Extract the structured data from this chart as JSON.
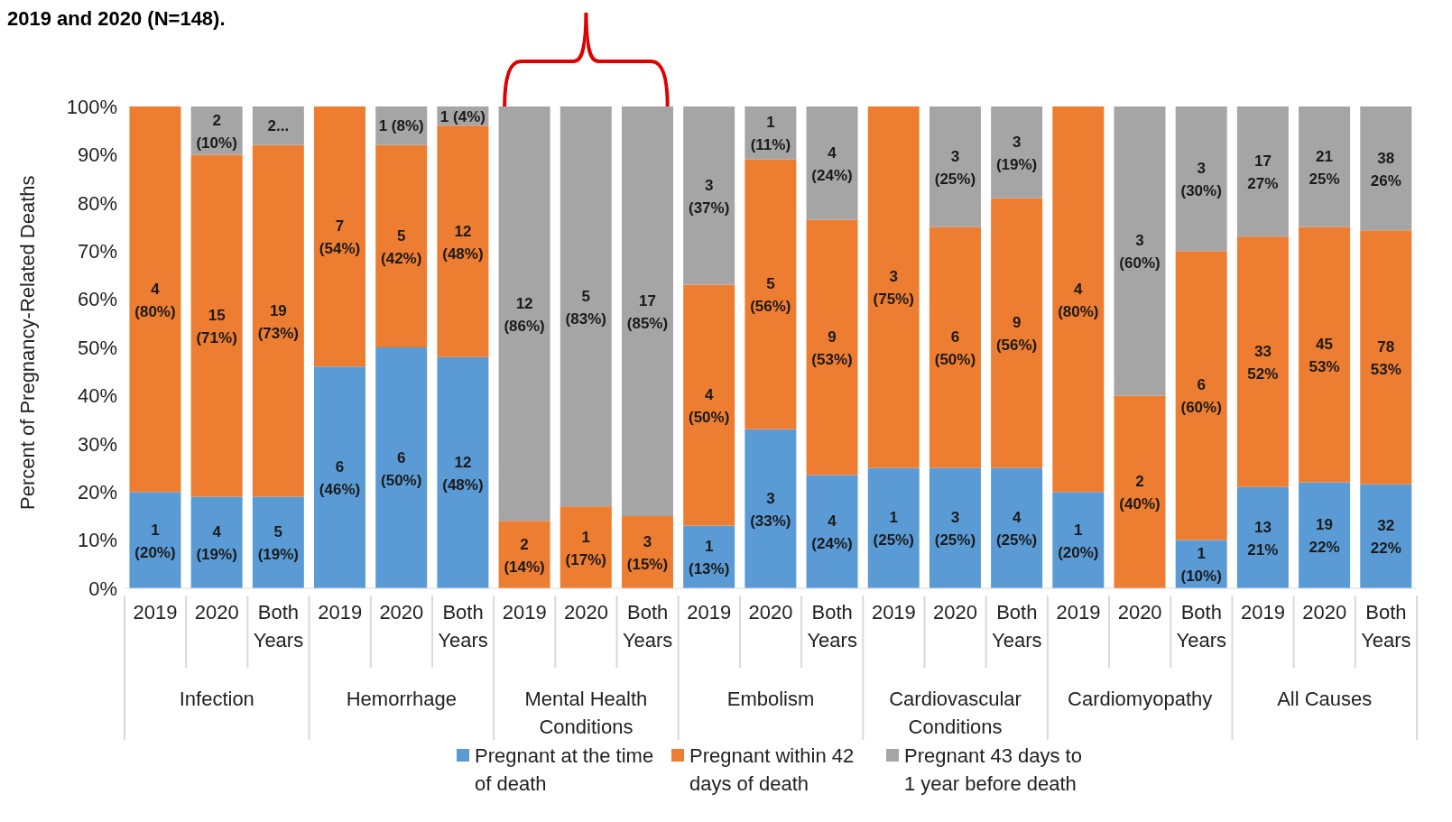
{
  "chart_data": {
    "type": "bar",
    "stacked": true,
    "title": "2019 and 2020 (N=148).",
    "ylabel": "Percent of Pregnancy-Related Deaths",
    "categories": [
      "2019",
      "2020",
      "Both Years",
      "2019",
      "2020",
      "Both Years",
      "2019",
      "2020",
      "Both Years",
      "2019",
      "2020",
      "Both Years",
      "2019",
      "2020",
      "Both Years",
      "2019",
      "2020",
      "Both Years",
      "2019",
      "2020",
      "Both Years"
    ],
    "annotations": [
      "Infection",
      "Hemorrhage",
      "Mental Health Conditions",
      "Embolism",
      "Cardiovascular Conditions",
      "Cardiomyopathy",
      "All Causes"
    ],
    "ylim": [
      0,
      100
    ],
    "yticks": [
      {
        "value": 0,
        "label": "0%"
      },
      {
        "value": 10,
        "label": "10%"
      },
      {
        "value": 20,
        "label": "20%"
      },
      {
        "value": 30,
        "label": "30%"
      },
      {
        "value": 40,
        "label": "40%"
      },
      {
        "value": 50,
        "label": "50%"
      },
      {
        "value": 60,
        "label": "60%"
      },
      {
        "value": 70,
        "label": "70%"
      },
      {
        "value": 80,
        "label": "80%"
      },
      {
        "value": 90,
        "label": "90%"
      },
      {
        "value": 100,
        "label": "100%"
      }
    ],
    "legend": "bottom",
    "series": [
      {
        "name": "Pregnant at the time of death",
        "color": "#5b9bd5",
        "values": [
          20,
          19,
          19,
          46,
          50,
          48,
          0,
          0,
          0,
          13,
          33,
          23.5,
          25,
          25,
          25,
          20,
          0,
          10,
          21,
          22,
          21.6
        ],
        "value_labels": [
          "1 (20%)",
          "4 (19%)",
          "5 (19%)",
          "6 (46%)",
          "6 (50%)",
          "12 (48%)",
          null,
          null,
          null,
          "1 (13%)",
          "3 (33%)",
          "4 (24%)",
          "1 (25%)",
          "3 (25%)",
          "4 (25%)",
          "1 (20%)",
          null,
          "1 (10%)",
          "13 21%",
          "19 22%",
          "32 22%"
        ]
      },
      {
        "name": "Pregnant within 42 days of death",
        "color": "#ed7d31",
        "values": [
          80,
          71,
          73,
          54,
          42,
          48,
          14,
          17,
          15,
          50,
          56,
          53,
          75,
          50,
          56,
          80,
          40,
          60,
          52,
          53,
          52.7
        ],
        "value_labels": [
          "4 (80%)",
          "15 (71%)",
          "19 (73%)",
          "7 (54%)",
          "5 (42%)",
          "12 (48%)",
          "2 (14%)",
          "1 (17%)",
          "3 (15%)",
          "4 (50%)",
          "5 (56%)",
          "9 (53%)",
          "3 (75%)",
          "6 (50%)",
          "9 (56%)",
          "4 (80%)",
          "2 (40%)",
          "6 (60%)",
          "33 52%",
          "45 53%",
          "78 53%"
        ]
      },
      {
        "name": "Pregnant 43 days to 1 year before death",
        "color": "#a5a5a5",
        "values": [
          0,
          10,
          8,
          0,
          8,
          4,
          86,
          83,
          85,
          37,
          11,
          23.5,
          0,
          25,
          19,
          0,
          60,
          30,
          27,
          25,
          25.7
        ],
        "value_labels": [
          null,
          "2 (10%)",
          "2...",
          null,
          "1 (8%)",
          "1 (4%)",
          "12 (86%)",
          "5 (83%)",
          "17 (85%)",
          "3 (37%)",
          "1 (11%)",
          "4 (24%)",
          null,
          "3 (25%)",
          "3 (19%)",
          null,
          "3 (60%)",
          "3 (30%)",
          "17 27%",
          "21 25%",
          "38 26%"
        ]
      }
    ]
  }
}
